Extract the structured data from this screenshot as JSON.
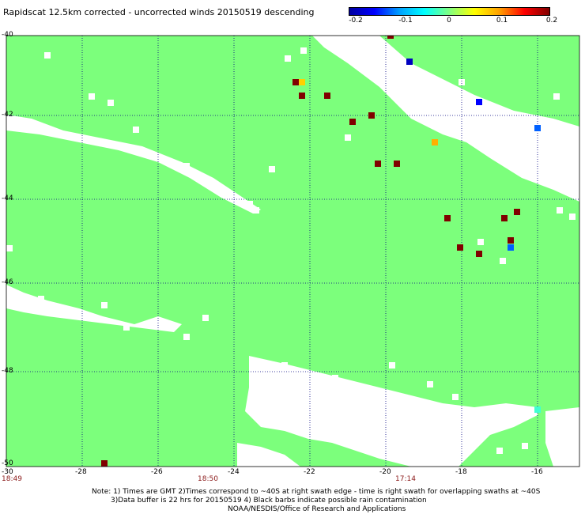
{
  "title": "Rapidscat 12.5km corrected - uncorrected winds 20150519 descending",
  "colorbar": {
    "labels": [
      "-0.2",
      "-0.1",
      "0",
      "0.1",
      "0.2"
    ],
    "colors": [
      "#0000a0",
      "#0000ff",
      "#00a0ff",
      "#00ffff",
      "#80ff80",
      "#ffff00",
      "#ffa000",
      "#ff0000",
      "#800000"
    ]
  },
  "axes": {
    "lat_labels": [
      "-40",
      "-42",
      "-44",
      "-46",
      "-48",
      "-50"
    ],
    "lon_labels": [
      "-30",
      "-28",
      "-26",
      "-24",
      "-22",
      "-20",
      "-18",
      "-16"
    ]
  },
  "times": {
    "t1": "18:49",
    "t2": "18:50",
    "t3": "17:14"
  },
  "colors": {
    "ocean_diff_zero": "#7cff7c",
    "no_data": "#ffffff",
    "positive_high": "#800000",
    "positive_mid": "#ffb000",
    "negative_high": "#0000c0",
    "negative_mid": "#0060ff",
    "near_zero_cyan": "#40ffd0",
    "grid": "#000080",
    "time_text": "#8b1a1a"
  },
  "notes": {
    "line1": "Note: 1) Times are GMT 2)Times correspond to ~40S at right swath edge - time is right swath for overlapping swaths at ~40S",
    "line2": "3)Data buffer is 22 hrs for 20150519 4) Black barbs indicate possible rain contamination",
    "line3": "NOAA/NESDIS/Office of Research and Applications"
  }
}
